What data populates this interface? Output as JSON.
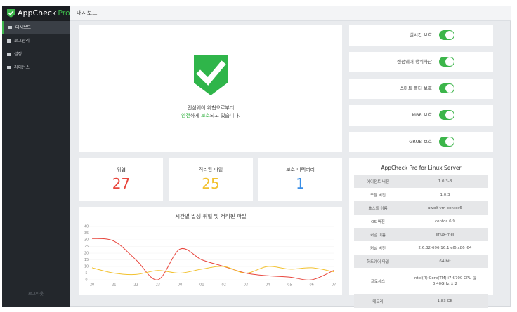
{
  "sidebar": {
    "brand": "AppCheck",
    "brand_suffix": "Pro",
    "menu": [
      "대시보드",
      "로그관리",
      "설정",
      "라이선스"
    ],
    "logout": "로그아웃"
  },
  "header": {
    "title": "대시보드"
  },
  "status": {
    "line1": "랜섬웨어 위협으로부터",
    "line2": [
      "안전",
      "하게 ",
      "보호",
      "되고 있습니다."
    ]
  },
  "protections": [
    {
      "label": "실시간 보호",
      "enabled": true
    },
    {
      "label": "랜섬웨어 행위차단",
      "enabled": true
    },
    {
      "label": "스마트 폴더 보호",
      "enabled": true
    },
    {
      "label": "MBR 보호",
      "enabled": true
    },
    {
      "label": "GRUB 보호",
      "enabled": true
    }
  ],
  "stats": [
    {
      "label": "위협",
      "value": 27,
      "color": "#e8453c"
    },
    {
      "label": "격리된 파일",
      "value": 25,
      "color": "#f2c12e"
    },
    {
      "label": "보호 디렉터리",
      "value": 1,
      "color": "#3a8ee6"
    }
  ],
  "chart_data": {
    "type": "line",
    "title": "시간별 발생 위협 및 격리된 파일",
    "categories": [
      "20",
      "21",
      "22",
      "23",
      "00",
      "01",
      "02",
      "03",
      "04",
      "05",
      "06",
      "07"
    ],
    "series": [
      {
        "name": "위협",
        "color": "#e8453c",
        "values": [
          31,
          29,
          15,
          0,
          23,
          15,
          10,
          5,
          3,
          2,
          0,
          7
        ]
      },
      {
        "name": "격리된 파일",
        "color": "#f2c12e",
        "values": [
          9,
          5,
          4,
          7,
          5,
          8,
          10,
          5,
          10,
          8,
          9,
          6
        ]
      }
    ],
    "ylim": [
      0,
      40
    ],
    "yticks": [
      0,
      5,
      10,
      15,
      20,
      25,
      30,
      35,
      40
    ]
  },
  "system_info": {
    "title": "AppCheck Pro for Linux Server",
    "rows": [
      [
        "에이전트 버전",
        "1.0.3-8"
      ],
      [
        "모듈 버전",
        "1.0.3"
      ],
      [
        "호스트 이름",
        "awolf-vm-centos6"
      ],
      [
        "OS 버전",
        "centos 6.9"
      ],
      [
        "커널 이름",
        "linux-rhel"
      ],
      [
        "커널 버전",
        "2.6.32-696.16.1.el6.x86_64"
      ],
      [
        "하드웨어 타입",
        "64-bit"
      ],
      [
        "프로세스",
        "Intel(R) Core(TM) i7-6700 CPU @ 3.40GHz × 2"
      ],
      [
        "메모리",
        "1.83 GB"
      ]
    ]
  }
}
